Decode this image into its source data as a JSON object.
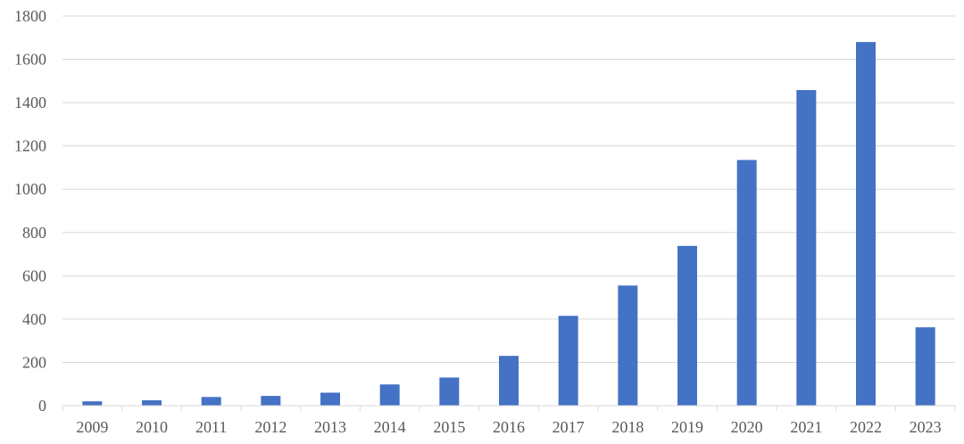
{
  "chart_data": {
    "type": "bar",
    "categories": [
      "2009",
      "2010",
      "2011",
      "2012",
      "2013",
      "2014",
      "2015",
      "2016",
      "2017",
      "2018",
      "2019",
      "2020",
      "2021",
      "2022",
      "2023"
    ],
    "values": [
      20,
      25,
      40,
      45,
      60,
      98,
      130,
      230,
      415,
      555,
      738,
      1135,
      1458,
      1680,
      362
    ],
    "title": "",
    "xlabel": "",
    "ylabel": "",
    "ylim": [
      0,
      1800
    ],
    "yticks": [
      0,
      200,
      400,
      600,
      800,
      1000,
      1200,
      1400,
      1600,
      1800
    ],
    "grid": true,
    "legend": "none",
    "bar_color": "#4472c4"
  }
}
